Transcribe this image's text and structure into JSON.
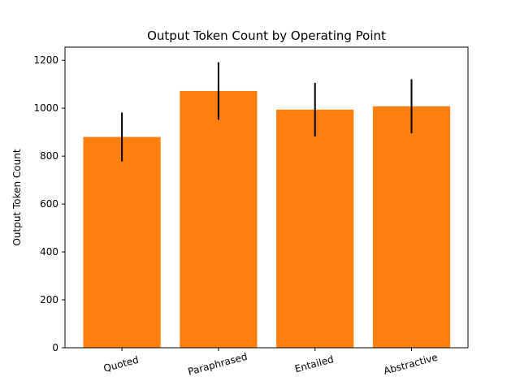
{
  "chart_data": {
    "type": "bar",
    "title": "Output Token Count by Operating Point",
    "xlabel": "",
    "ylabel": "Output Token Count",
    "categories": [
      "Quoted",
      "Paraphrased",
      "Entailed",
      "Abstractive"
    ],
    "values": [
      880,
      1072,
      994,
      1008
    ],
    "errors": [
      102,
      120,
      112,
      113
    ],
    "ylim": [
      0,
      1255
    ],
    "yticks": [
      0,
      200,
      400,
      600,
      800,
      1000,
      1200
    ],
    "xtick_rotation_deg": 15,
    "grid": false,
    "legend": "none",
    "bar_color": "#ff7f0e",
    "error_color": "#000000"
  }
}
